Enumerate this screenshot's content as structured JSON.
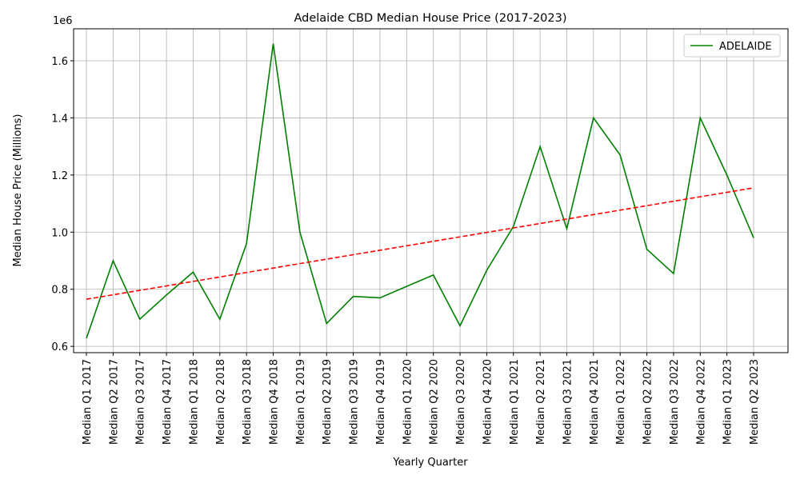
{
  "chart_data": {
    "type": "line",
    "title": "Adelaide CBD Median House Price (2017-2023)",
    "xlabel": "Yearly Quarter",
    "ylabel": "Median House Price (Millions)",
    "y_offset_label": "1e6",
    "categories": [
      "Median Q1 2017",
      "Median Q2 2017",
      "Median Q3 2017",
      "Median Q4 2017",
      "Median Q1 2018",
      "Median Q2 2018",
      "Median Q3 2018",
      "Median Q4 2018",
      "Median Q1 2019",
      "Median Q2 2019",
      "Median Q3 2019",
      "Median Q4 2019",
      "Median Q1 2020",
      "Median Q2 2020",
      "Median Q3 2020",
      "Median Q4 2020",
      "Median Q1 2021",
      "Median Q2 2021",
      "Median Q3 2021",
      "Median Q4 2021",
      "Median Q1 2022",
      "Median Q2 2022",
      "Median Q3 2022",
      "Median Q4 2022",
      "Median Q1 2023",
      "Median Q2 2023"
    ],
    "series": [
      {
        "name": "ADELAIDE",
        "color": "#008000",
        "values": [
          0.628,
          0.9,
          0.695,
          0.78,
          0.86,
          0.695,
          0.96,
          1.66,
          1.0,
          0.68,
          0.775,
          0.77,
          0.81,
          0.85,
          0.672,
          0.866,
          1.02,
          1.3,
          1.012,
          1.4,
          1.27,
          0.94,
          0.855,
          1.4,
          1.2,
          0.98
        ]
      }
    ],
    "trend": {
      "color": "#ff0000",
      "start": 0.765,
      "end": 1.155
    },
    "ylim": [
      0.578,
      1.712
    ],
    "yticks": [
      0.6,
      0.8,
      {
        "value": 1,
        "label": "1.0"
      },
      1.2,
      1.4,
      1.6
    ],
    "grid": true,
    "legend": "upper right"
  }
}
